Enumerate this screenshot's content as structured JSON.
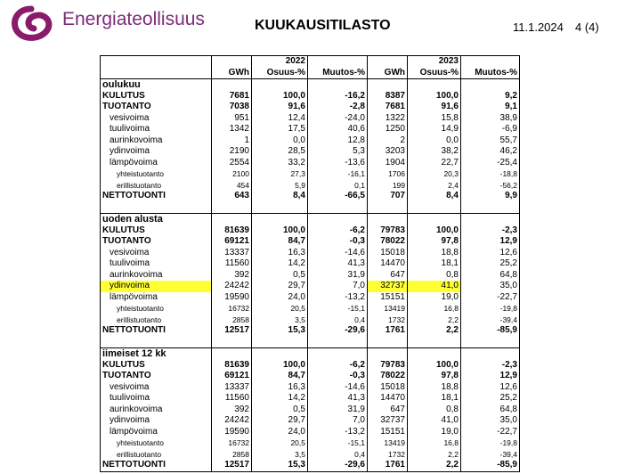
{
  "header": {
    "logo": "Energiateollisuus",
    "title": "KUUKAUSITILASTO",
    "date": "11.1.2024",
    "page": "4 (4)"
  },
  "table": {
    "years": [
      "2022",
      "2023"
    ],
    "columns": [
      "GWh",
      "Osuus-%",
      "Muutos-%",
      "GWh",
      "Osuus-%",
      "Muutos-%"
    ],
    "sections": [
      {
        "title": "oulukuu",
        "rows": [
          [
            "KULUTUS",
            "7681",
            "100,0",
            "-16,2",
            "8387",
            "100,0",
            "9,2"
          ],
          [
            "TUOTANTO",
            "7038",
            "91,6",
            "-2,8",
            "7681",
            "91,6",
            "9,1"
          ],
          [
            "vesivoima",
            "951",
            "12,4",
            "-24,0",
            "1322",
            "15,8",
            "38,9"
          ],
          [
            "tuulivoima",
            "1342",
            "17,5",
            "40,6",
            "1250",
            "14,9",
            "-6,9"
          ],
          [
            "aurinkovoima",
            "1",
            "0,0",
            "12,8",
            "2",
            "0,0",
            "55,7"
          ],
          [
            "ydinvoima",
            "2190",
            "28,5",
            "5,3",
            "3203",
            "38,2",
            "46,2"
          ],
          [
            "lämpövoima",
            "2554",
            "33,2",
            "-13,6",
            "1904",
            "22,7",
            "-25,4"
          ],
          [
            "yhteistuotanto",
            "2100",
            "27,3",
            "-16,1",
            "1706",
            "20,3",
            "-18,8"
          ],
          [
            "erillistuotanto",
            "454",
            "5,9",
            "0,1",
            "199",
            "2,4",
            "-56,2"
          ],
          [
            "NETTOTUONTI",
            "643",
            "8,4",
            "-66,5",
            "707",
            "8,4",
            "9,9"
          ]
        ]
      },
      {
        "title": "uoden alusta",
        "rows": [
          [
            "KULUTUS",
            "81639",
            "100,0",
            "-6,2",
            "79783",
            "100,0",
            "-2,3"
          ],
          [
            "TUOTANTO",
            "69121",
            "84,7",
            "-0,3",
            "78022",
            "97,8",
            "12,9"
          ],
          [
            "vesivoima",
            "13337",
            "16,3",
            "-14,6",
            "15018",
            "18,8",
            "12,6"
          ],
          [
            "tuulivoima",
            "11560",
            "14,2",
            "41,3",
            "14470",
            "18,1",
            "25,2"
          ],
          [
            "aurinkovoima",
            "392",
            "0,5",
            "31,9",
            "647",
            "0,8",
            "64,8"
          ],
          [
            "ydinvoima",
            "24242",
            "29,7",
            "7,0",
            "32737",
            "41,0",
            "35,0"
          ],
          [
            "lämpövoima",
            "19590",
            "24,0",
            "-13,2",
            "15151",
            "19,0",
            "-22,7"
          ],
          [
            "yhteistuotanto",
            "16732",
            "20,5",
            "-15,1",
            "13419",
            "16,8",
            "-19,8"
          ],
          [
            "erillistuotanto",
            "2858",
            "3,5",
            "0,4",
            "1732",
            "2,2",
            "-39,4"
          ],
          [
            "NETTOTUONTI",
            "12517",
            "15,3",
            "-29,6",
            "1761",
            "2,2",
            "-85,9"
          ]
        ]
      },
      {
        "title": "iimeiset 12 kk",
        "rows": [
          [
            "KULUTUS",
            "81639",
            "100,0",
            "-6,2",
            "79783",
            "100,0",
            "-2,3"
          ],
          [
            "TUOTANTO",
            "69121",
            "84,7",
            "-0,3",
            "78022",
            "97,8",
            "12,9"
          ],
          [
            "vesivoima",
            "13337",
            "16,3",
            "-14,6",
            "15018",
            "18,8",
            "12,6"
          ],
          [
            "tuulivoima",
            "11560",
            "14,2",
            "41,3",
            "14470",
            "18,1",
            "25,2"
          ],
          [
            "aurinkovoima",
            "392",
            "0,5",
            "31,9",
            "647",
            "0,8",
            "64,8"
          ],
          [
            "ydinvoima",
            "24242",
            "29,7",
            "7,0",
            "32737",
            "41,0",
            "35,0"
          ],
          [
            "lämpövoima",
            "19590",
            "24,0",
            "-13,2",
            "15151",
            "19,0",
            "-22,7"
          ],
          [
            "yhteistuotanto",
            "16732",
            "20,5",
            "-15,1",
            "13419",
            "16,8",
            "-19,8"
          ],
          [
            "erillistuotanto",
            "2858",
            "3,5",
            "0,4",
            "1732",
            "2,2",
            "-39,4"
          ],
          [
            "NETTOTUONTI",
            "12517",
            "15,3",
            "-29,6",
            "1761",
            "2,2",
            "-85,9"
          ]
        ]
      }
    ]
  }
}
